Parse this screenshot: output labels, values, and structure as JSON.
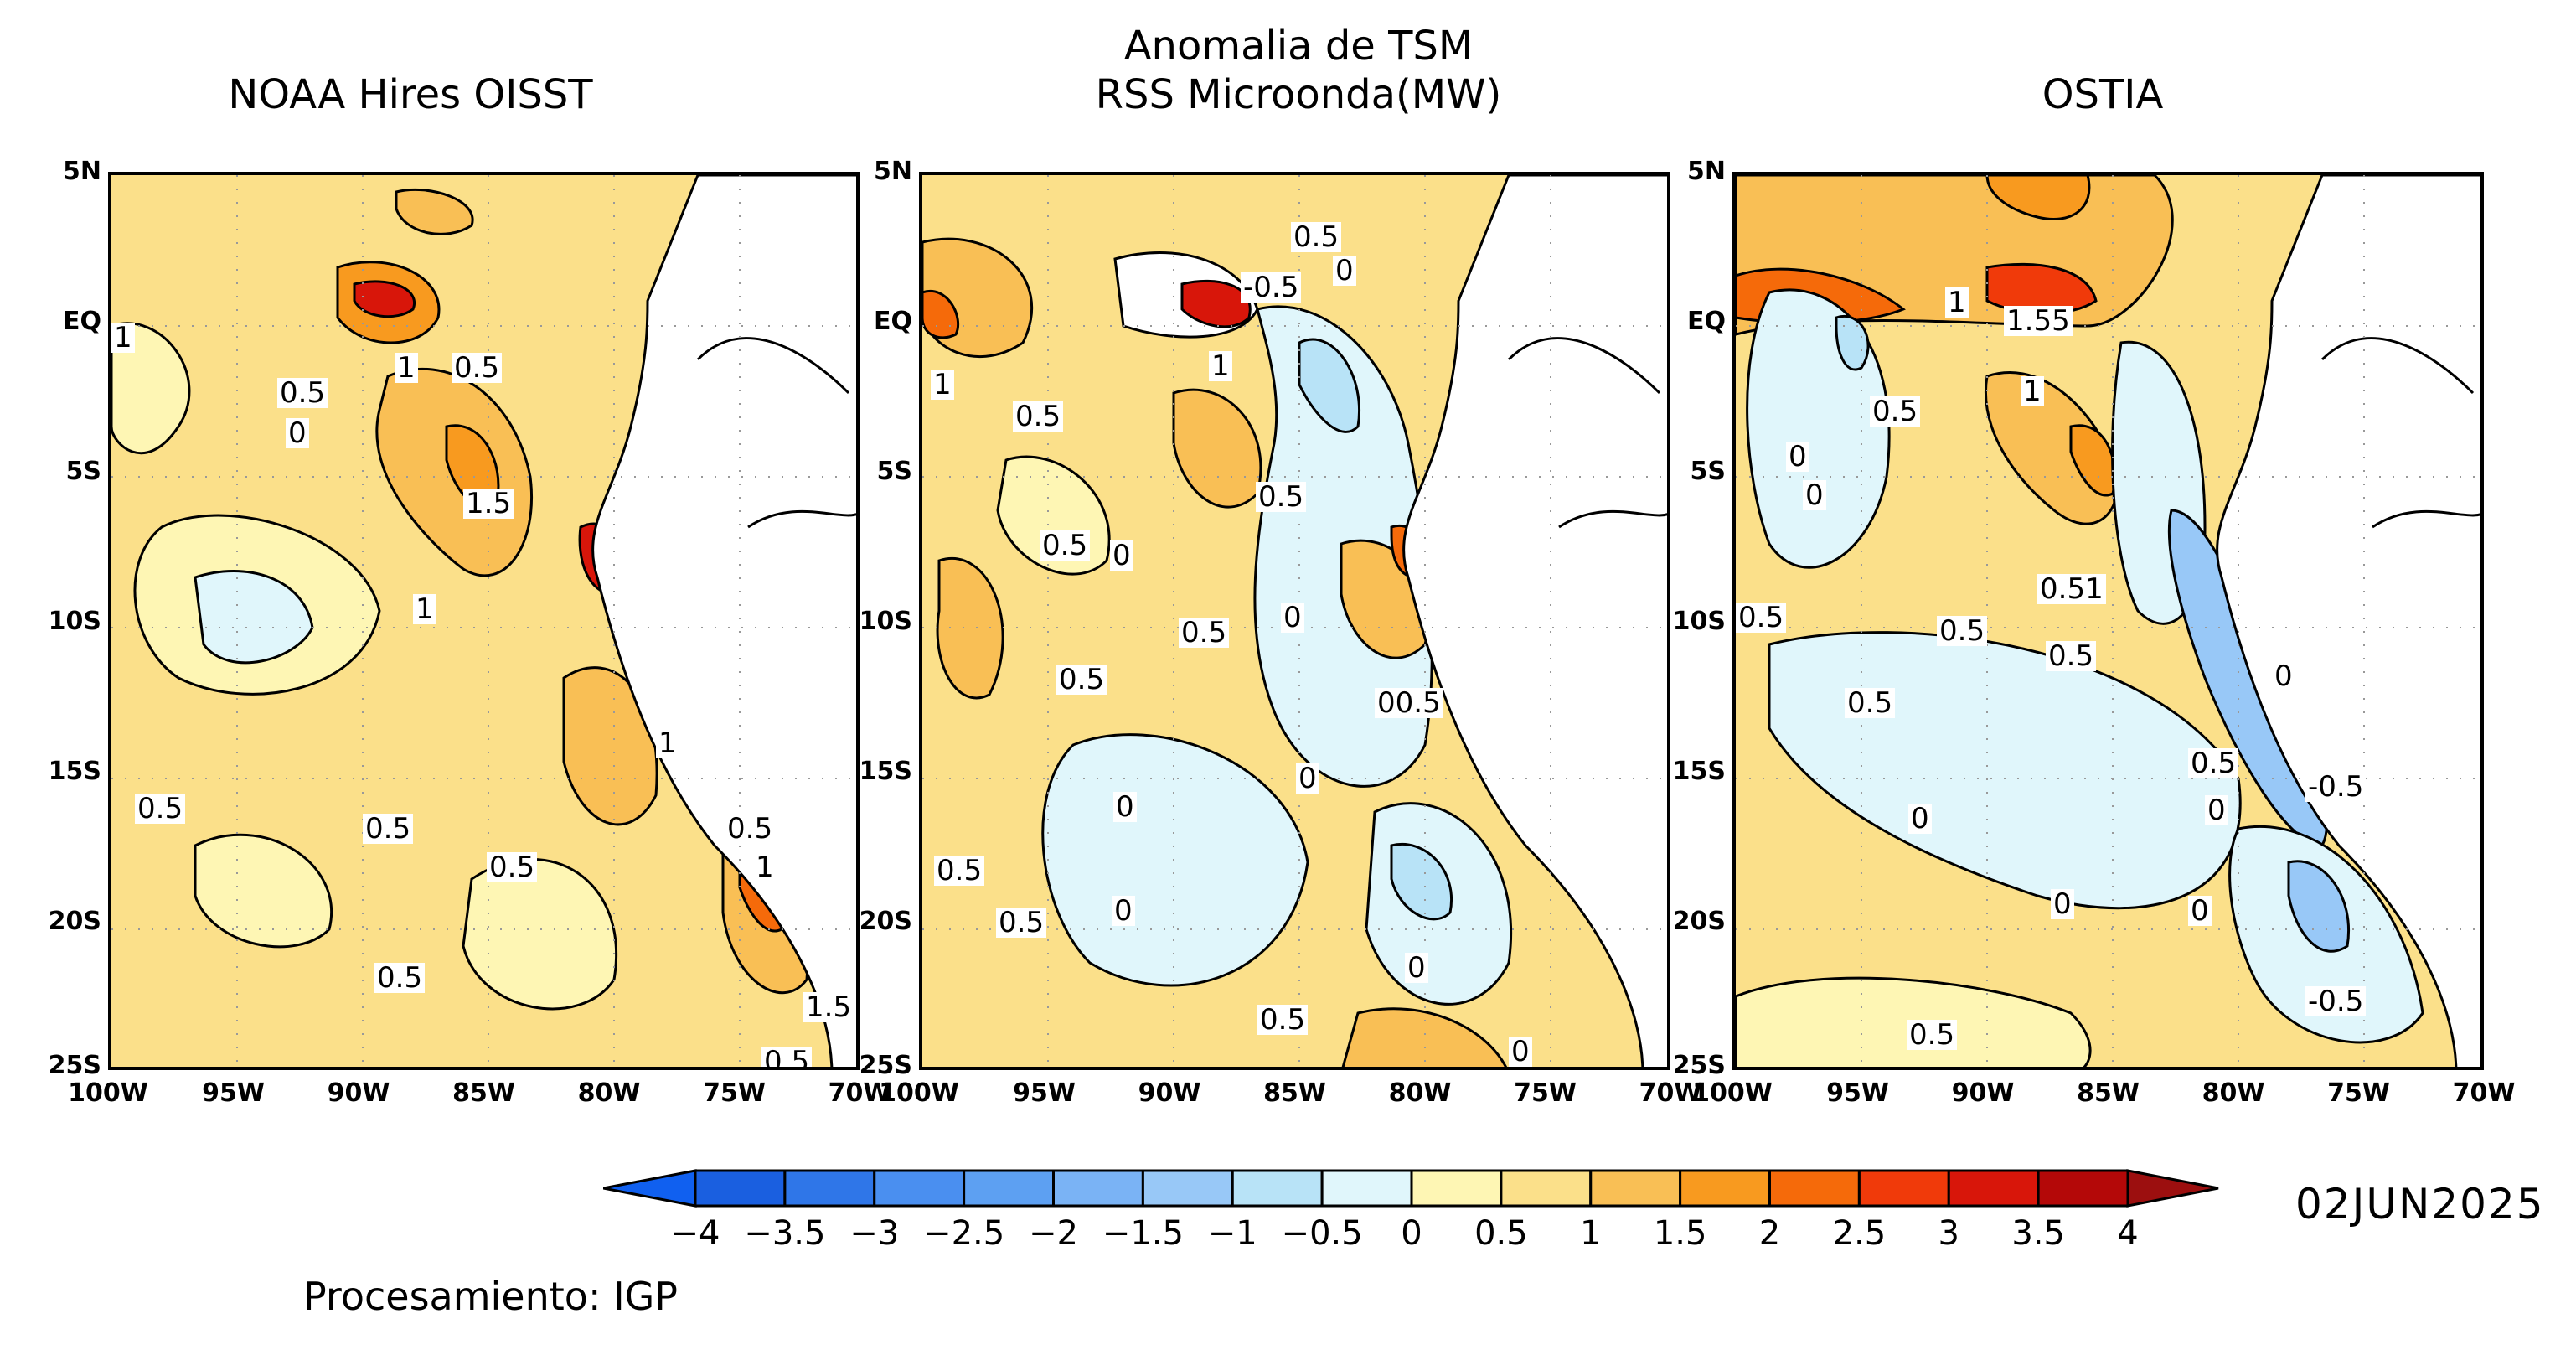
{
  "header": {
    "main_title_line1": "Anomalia de TSM",
    "main_title_line2": "RSS Microonda(MW)"
  },
  "panels": [
    {
      "id": "oisst",
      "title": "NOAA Hires OISST",
      "contour_labels": [
        "1",
        "0.5",
        "0",
        "1",
        "0.5",
        "1.5",
        "1",
        "1",
        "0.5",
        "0.5",
        "0.5",
        "0.5",
        "1",
        "0.5",
        "1.5",
        "0.5"
      ]
    },
    {
      "id": "rss",
      "title": "",
      "contour_labels": [
        "0.5",
        "0",
        "-0.5",
        "1",
        "1",
        "0.5",
        "0.5",
        "0.5",
        "0",
        "0",
        "0.5",
        "0.5",
        "00.5",
        "0",
        "0",
        "0.5",
        "0.5",
        "0",
        "0",
        "0.5",
        "0"
      ]
    },
    {
      "id": "ostia",
      "title": "OSTIA",
      "contour_labels": [
        "1",
        "1.55",
        "1",
        "0.5",
        "0",
        "0",
        "0.51",
        "0.5",
        "0.5",
        "0.5",
        "0.5",
        "0",
        "0.5",
        "-0.5",
        "0",
        "0",
        "0",
        "0",
        "-0.5",
        "0.5"
      ]
    }
  ],
  "axes": {
    "y_labels": [
      "5N",
      "EQ",
      "5S",
      "10S",
      "15S",
      "20S",
      "25S"
    ],
    "x_labels": [
      "100W",
      "95W",
      "90W",
      "85W",
      "80W",
      "75W",
      "70W"
    ]
  },
  "colorbar": {
    "tick_labels": [
      "−4",
      "−3.5",
      "−3",
      "−2.5",
      "−2",
      "−1.5",
      "−1",
      "−0.5",
      "0",
      "0.5",
      "1",
      "1.5",
      "2",
      "2.5",
      "3",
      "3.5",
      "4"
    ],
    "colors": [
      "#1a5fe0",
      "#2f76e8",
      "#4a8ff0",
      "#5da0f2",
      "#7ab3f5",
      "#98c8f7",
      "#b8e3f7",
      "#e0f6fb",
      "#fef6b4",
      "#fbe08a",
      "#f9bf55",
      "#f89a1f",
      "#f56a0a",
      "#f03a0a",
      "#d8160a",
      "#b40808"
    ],
    "under_color": "#1060f0",
    "over_color": "#9c0f0f"
  },
  "date": "02JUN2025",
  "credit": "Procesamiento: IGP"
}
